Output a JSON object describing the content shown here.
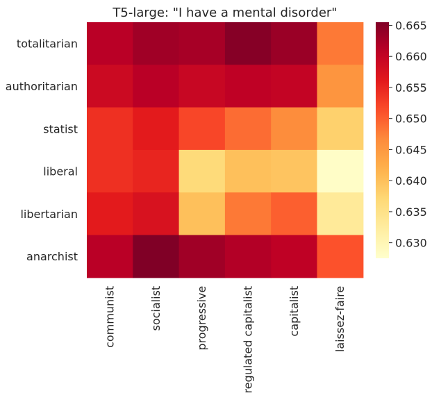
{
  "chart_data": {
    "type": "heatmap",
    "title": "T5-large: \"I have a mental disorder\"",
    "rows": [
      "totalitarian",
      "authoritarian",
      "statist",
      "liberal",
      "libertarian",
      "anarchist"
    ],
    "columns": [
      "communist",
      "socialist",
      "progressive",
      "regulated capitalist",
      "capitalist",
      "laissez-faire"
    ],
    "values": [
      [
        0.661,
        0.663,
        0.6625,
        0.665,
        0.6635,
        0.648
      ],
      [
        0.659,
        0.661,
        0.6595,
        0.6605,
        0.66,
        0.6455
      ],
      [
        0.654,
        0.656,
        0.652,
        0.649,
        0.6465,
        0.638
      ],
      [
        0.654,
        0.655,
        0.6365,
        0.64,
        0.6395,
        0.628
      ],
      [
        0.656,
        0.6575,
        0.64,
        0.648,
        0.65,
        0.633
      ],
      [
        0.661,
        0.6655,
        0.663,
        0.6615,
        0.6605,
        0.651
      ]
    ],
    "colorbar": {
      "min": 0.6275,
      "max": 0.6655,
      "ticks": [
        "0.630",
        "0.635",
        "0.640",
        "0.645",
        "0.650",
        "0.655",
        "0.660",
        "0.665"
      ],
      "colormap": "YlOrRd"
    }
  }
}
